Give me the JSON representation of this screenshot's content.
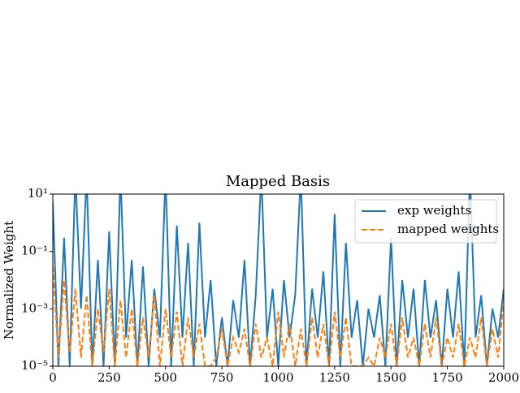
{
  "chart_data": {
    "type": "line",
    "title": "Mapped Basis",
    "ylabel": "Normalized Weight",
    "log_y": true,
    "legend": "upper right",
    "x": [
      0,
      25,
      50,
      75,
      100,
      125,
      150,
      175,
      200,
      225,
      250,
      275,
      300,
      325,
      350,
      375,
      400,
      425,
      450,
      475,
      500,
      525,
      550,
      575,
      600,
      625,
      650,
      675,
      700,
      725,
      750,
      775,
      800,
      825,
      850,
      875,
      900,
      925,
      950,
      975,
      1000,
      1025,
      1050,
      1075,
      1100,
      1125,
      1150,
      1175,
      1200,
      1225,
      1250,
      1275,
      1300,
      1325,
      1350,
      1375,
      1400,
      1425,
      1450,
      1475,
      1500,
      1525,
      1550,
      1575,
      1600,
      1625,
      1650,
      1675,
      1700,
      1725,
      1750,
      1775,
      1800,
      1825,
      1850,
      1875,
      1900,
      1925,
      1950,
      1975,
      2000
    ],
    "series": [
      {
        "name": "exp weights",
        "color": "#1f77b4",
        "dash": false,
        "values": [
          5,
          1e-05,
          0.3,
          1e-05,
          50,
          0.001,
          50,
          1e-05,
          0.05,
          1e-05,
          0.5,
          1e-05,
          50,
          0.0001,
          0.05,
          1e-05,
          0.03,
          1e-05,
          0.005,
          0.0001,
          50,
          1e-05,
          0.8,
          0.0001,
          0.2,
          1e-05,
          1,
          0.0001,
          0.01,
          1e-05,
          0.0005,
          1e-05,
          0.002,
          0.0001,
          0.05,
          1e-05,
          0.003,
          50,
          0.0001,
          0.005,
          1e-05,
          0.01,
          0.0001,
          0.003,
          50,
          1e-05,
          0.005,
          0.0001,
          0.02,
          1e-05,
          2,
          1e-05,
          0.2,
          0.0001,
          0.002,
          1e-05,
          0.001,
          0.0001,
          0.003,
          1e-05,
          0.3,
          1e-05,
          0.01,
          0.0001,
          0.005,
          1e-05,
          0.01,
          0.0001,
          0.002,
          1e-05,
          0.005,
          0.0001,
          0.02,
          1e-05,
          50,
          0.0001,
          0.003,
          1e-05,
          0.001,
          0.0001,
          0.005
        ]
      },
      {
        "name": "mapped weights",
        "color": "#ff7f0e",
        "dash": true,
        "values": [
          0.03,
          2e-05,
          0.01,
          3e-05,
          0.005,
          2e-05,
          0.003,
          1e-05,
          0.001,
          3e-05,
          0.005,
          1e-05,
          0.002,
          2e-05,
          0.001,
          1e-05,
          0.0005,
          2e-05,
          0.003,
          1e-05,
          0.001,
          2e-05,
          0.0008,
          1e-05,
          0.0005,
          2e-05,
          0.0003,
          1e-05,
          1e-05,
          2e-05,
          0.0002,
          1e-05,
          0.0001,
          3e-05,
          0.0002,
          1e-05,
          0.0003,
          2e-05,
          0.0001,
          1e-05,
          0.0008,
          2e-05,
          0.0003,
          1e-05,
          0.0002,
          1e-05,
          0.0005,
          2e-05,
          0.0003,
          1e-05,
          0.0008,
          2e-05,
          0.0005,
          1e-05,
          1e-05,
          1e-05,
          2e-05,
          1e-05,
          0.0001,
          2e-05,
          0.0003,
          1e-05,
          0.0005,
          2e-05,
          0.0001,
          1e-05,
          0.0003,
          2e-05,
          0.0005,
          1e-05,
          0.0001,
          2e-05,
          0.0003,
          1e-05,
          0.0001,
          2e-05,
          0.0005,
          1e-05,
          0.0002,
          2e-05,
          0.002
        ]
      }
    ],
    "xlim": [
      0,
      2000
    ],
    "xticks": [
      0,
      250,
      500,
      750,
      1000,
      1250,
      1500,
      1750,
      2000
    ],
    "ylim": [
      1e-05,
      10
    ],
    "yticks": [
      {
        "value": 1e-05,
        "label": "10⁻⁵"
      },
      {
        "value": 0.001,
        "label": "10⁻³"
      },
      {
        "value": 0.1,
        "label": "10⁻¹"
      },
      {
        "value": 10,
        "label": "10¹"
      }
    ]
  }
}
